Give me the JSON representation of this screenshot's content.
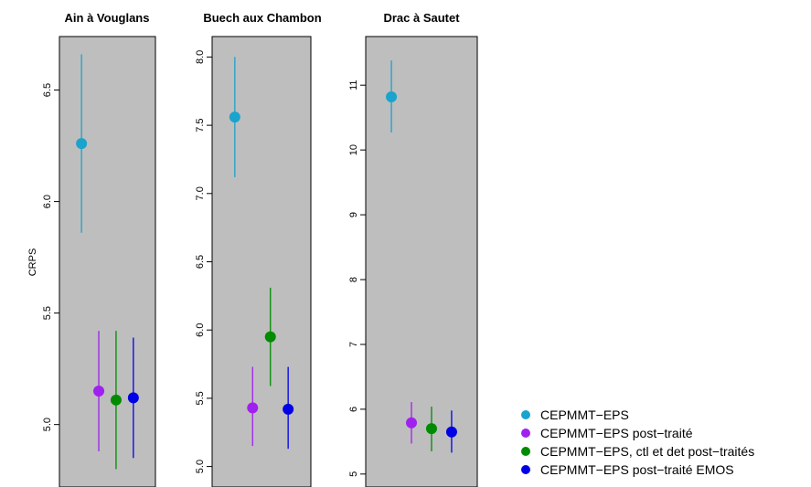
{
  "legend": [
    {
      "label": "CEPMMT−EPS",
      "color": "#1aa3cc"
    },
    {
      "label": "CEPMMT−EPS post−traité",
      "color": "#a020f0"
    },
    {
      "label": "CEPMMT−EPS, ctl et det post−traités",
      "color": "#008b00"
    },
    {
      "label": "CEPMMT−EPS post−traité EMOS",
      "color": "#0000e6"
    }
  ],
  "panel_background": "#bebebe",
  "chart_data": [
    {
      "type": "scatter",
      "title": "Ain à Vouglans",
      "ylabel": "CRPS",
      "ylim": [
        4.72,
        6.74
      ],
      "yticks": [
        5.0,
        5.5,
        6.0,
        6.5
      ],
      "ytick_labels": [
        "5.0",
        "5.5",
        "6.0",
        "6.5"
      ],
      "series": [
        {
          "name": "CEPMMT−EPS",
          "value": 6.26,
          "low": 5.86,
          "high": 6.66
        },
        {
          "name": "CEPMMT−EPS post−traité",
          "value": 5.15,
          "low": 4.88,
          "high": 5.42
        },
        {
          "name": "CEPMMT−EPS, ctl et det post−traités",
          "value": 5.11,
          "low": 4.8,
          "high": 5.42
        },
        {
          "name": "CEPMMT−EPS post−traité EMOS",
          "value": 5.12,
          "low": 4.85,
          "high": 5.39
        }
      ]
    },
    {
      "type": "scatter",
      "title": "Buech aux Chambon",
      "ylabel": "",
      "ylim": [
        4.85,
        8.15
      ],
      "yticks": [
        5.0,
        5.5,
        6.0,
        6.5,
        7.0,
        7.5,
        8.0
      ],
      "ytick_labels": [
        "5.0",
        "5.5",
        "6.0",
        "6.5",
        "7.0",
        "7.5",
        "8.0"
      ],
      "series": [
        {
          "name": "CEPMMT−EPS",
          "value": 7.56,
          "low": 7.12,
          "high": 8.0
        },
        {
          "name": "CEPMMT−EPS post−traité",
          "value": 5.43,
          "low": 5.15,
          "high": 5.73
        },
        {
          "name": "CEPMMT−EPS, ctl et det post−traités",
          "value": 5.95,
          "low": 5.59,
          "high": 6.31
        },
        {
          "name": "CEPMMT−EPS post−traité EMOS",
          "value": 5.42,
          "low": 5.13,
          "high": 5.73
        }
      ]
    },
    {
      "type": "scatter",
      "title": "Drac à Sautet",
      "ylabel": "",
      "ylim": [
        4.8,
        11.75
      ],
      "yticks": [
        5,
        6,
        7,
        8,
        9,
        10,
        11
      ],
      "ytick_labels": [
        "5",
        "6",
        "7",
        "8",
        "9",
        "10",
        "11"
      ],
      "series": [
        {
          "name": "CEPMMT−EPS",
          "value": 10.82,
          "low": 10.27,
          "high": 11.38
        },
        {
          "name": "CEPMMT−EPS post−traité",
          "value": 5.79,
          "low": 5.47,
          "high": 6.11
        },
        {
          "name": "CEPMMT−EPS, ctl et det post−traités",
          "value": 5.7,
          "low": 5.35,
          "high": 6.04
        },
        {
          "name": "CEPMMT−EPS post−traité EMOS",
          "value": 5.65,
          "low": 5.33,
          "high": 5.98
        }
      ]
    }
  ]
}
